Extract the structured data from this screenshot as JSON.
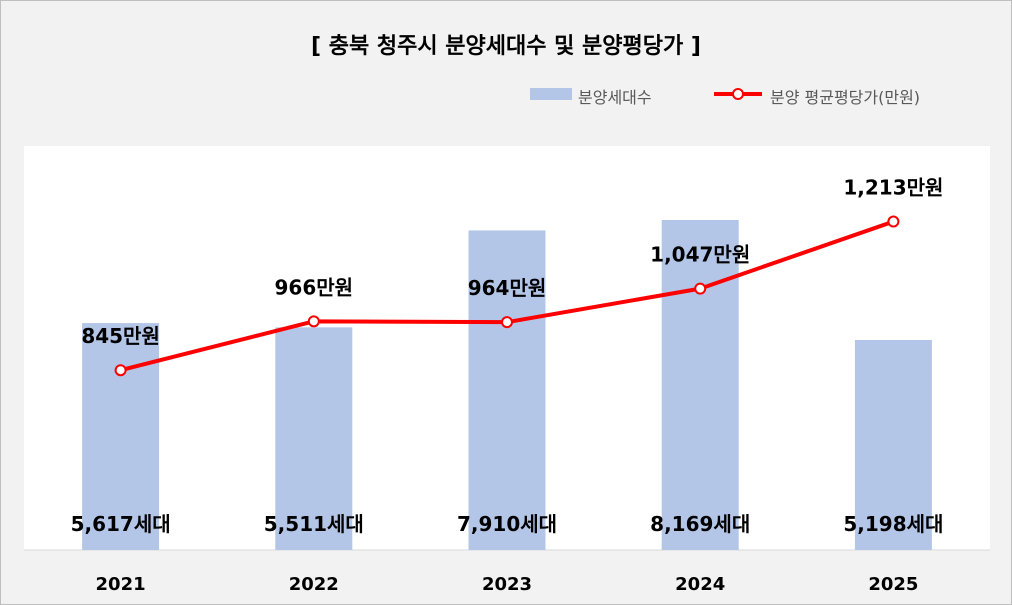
{
  "chart_data": {
    "type": "bar",
    "title": "[ 충북 청주시 분양세대수 및 분양평당가 ]",
    "categories": [
      "2021",
      "2022",
      "2023",
      "2024",
      "2025"
    ],
    "series": [
      {
        "name": "분양세대수",
        "kind": "bar",
        "values": [
          5617,
          5511,
          7910,
          8169,
          5198
        ],
        "labels": [
          "5,617세대",
          "5,511세대",
          "7,910세대",
          "8,169세대",
          "5,198세대"
        ],
        "color": "#b4c6e7"
      },
      {
        "name": "분양 평균평당가(만원)",
        "kind": "line",
        "values": [
          845,
          966,
          964,
          1047,
          1213
        ],
        "labels": [
          "845만원",
          "966만원",
          "964만원",
          "1,047만원",
          "1,213만원"
        ],
        "color": "#ff0000"
      }
    ],
    "bar_axis_max": 10000,
    "line_axis_range": [
      400,
      1400
    ],
    "grid": false,
    "legend_position": "top-right"
  }
}
